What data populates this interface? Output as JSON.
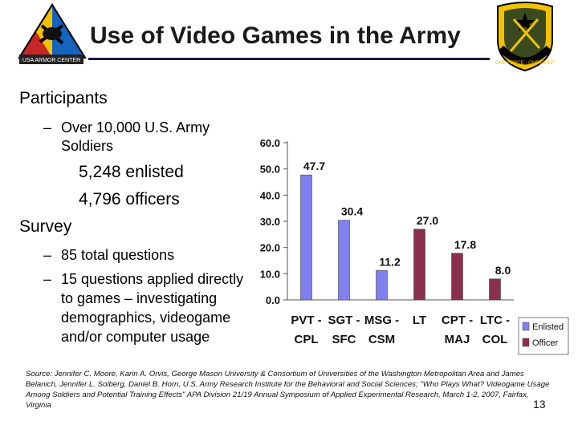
{
  "slide": {
    "title": "Use of Video Games in the Army",
    "page_number": "13",
    "logos": {
      "left_caption": "USA ARMOR CENTER",
      "right_caption": "ONE FORCE - ONE FIGHT"
    }
  },
  "bullets": {
    "participants": "Participants",
    "participants_sub": "Over 10,000 U.S. Army Soldiers",
    "enlisted": "5,248 enlisted",
    "officers": "4,796 officers",
    "survey": "Survey",
    "survey_sub1": "85 total questions",
    "survey_sub2": "15 questions applied directly to games – investigating demographics, videogame and/or computer usage",
    "dash": "–"
  },
  "source": "Source: Jennifer C. Moore, Karin A. Orvis, George Mason University & Consortium of Universities of the Washington Metropolitan Area and James Belanich, Jennifer L. Solberg, Daniel B. Horn, U.S. Army Research Institute for the Behavioral and Social Sciences; \"Who Plays What? Videogame Usage Among Soldiers and Potential Training Effects\" APA Division 21/19 Annual Symposium of Applied Experimental Research, March 1-2, 2007, Fairfax, Virginia",
  "chart_data": {
    "type": "bar",
    "categories": [
      "PVT - CPL",
      "SGT - SFC",
      "MSG - CSM",
      "LT",
      "CPT - MAJ",
      "LTC - COL"
    ],
    "values": [
      47.7,
      30.4,
      11.2,
      27.0,
      17.8,
      8.0
    ],
    "value_labels": [
      "47.7",
      "30.4",
      "11.2",
      "27.0",
      "17.8",
      "8.0"
    ],
    "series_of_category": [
      "Enlisted",
      "Enlisted",
      "Enlisted",
      "Officer",
      "Officer",
      "Officer"
    ],
    "legend": [
      {
        "name": "Enlisted",
        "color": "#8080f0"
      },
      {
        "name": "Officer",
        "color": "#8b2f4f"
      }
    ],
    "legend_position": "right",
    "ylim": [
      0,
      60
    ],
    "yticks": [
      "0.0",
      "10.0",
      "20.0",
      "30.0",
      "40.0",
      "50.0",
      "60.0"
    ],
    "grid": false,
    "title": "",
    "xlabel": "",
    "ylabel": ""
  }
}
